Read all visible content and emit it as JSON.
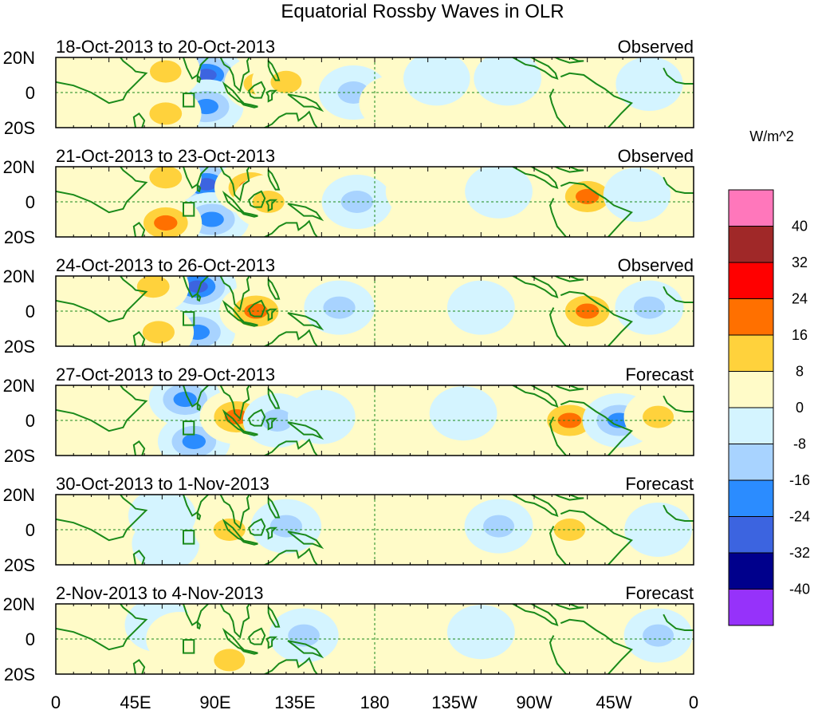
{
  "chart_data": {
    "type": "heatmap",
    "title": "Equatorial Rossby Waves in OLR",
    "units_label": "W/m^2",
    "x_ticks": [
      "0",
      "45E",
      "90E",
      "135E",
      "180",
      "135W",
      "90W",
      "45W",
      "0"
    ],
    "y_ticks": [
      "20N",
      "0",
      "20S"
    ],
    "colorbar": {
      "levels": [
        "40",
        "32",
        "24",
        "16",
        "8",
        "0",
        "-8",
        "-16",
        "-24",
        "-32",
        "-40"
      ],
      "colors": [
        "#ff77bb",
        "#a02828",
        "#ff0000",
        "#ff7000",
        "#ffd23c",
        "#fffbc8",
        "#d4f4ff",
        "#a8d3ff",
        "#2b8cff",
        "#3c64e0",
        "#00008c",
        "#9632fa"
      ]
    },
    "panels": [
      {
        "date_range": "18-Oct-2013 to 20-Oct-2013",
        "status": "Observed",
        "anomalies": [
          {
            "lon": 85,
            "lat": 10,
            "value": -28
          },
          {
            "lon": 85,
            "lat": -8,
            "value": -22
          },
          {
            "lon": 62,
            "lat": 12,
            "value": 12
          },
          {
            "lon": 62,
            "lat": -12,
            "value": 16
          },
          {
            "lon": 115,
            "lat": 5,
            "value": 14
          },
          {
            "lon": 130,
            "lat": 6,
            "value": 10
          },
          {
            "lon": 168,
            "lat": 0,
            "value": -12
          },
          {
            "lon": 190,
            "lat": -6,
            "value": 6
          },
          {
            "lon": 215,
            "lat": 8,
            "value": -6
          },
          {
            "lon": 255,
            "lat": 8,
            "value": -8
          },
          {
            "lon": 300,
            "lat": 0,
            "value": 8
          },
          {
            "lon": 335,
            "lat": 5,
            "value": -7
          }
        ]
      },
      {
        "date_range": "21-Oct-2013 to 23-Oct-2013",
        "status": "Observed",
        "anomalies": [
          {
            "lon": 85,
            "lat": 10,
            "value": -28
          },
          {
            "lon": 88,
            "lat": -10,
            "value": -24
          },
          {
            "lon": 62,
            "lat": 14,
            "value": 16
          },
          {
            "lon": 62,
            "lat": -12,
            "value": 18
          },
          {
            "lon": 110,
            "lat": 8,
            "value": 18
          },
          {
            "lon": 120,
            "lat": 0,
            "value": 14
          },
          {
            "lon": 170,
            "lat": 0,
            "value": -14
          },
          {
            "lon": 205,
            "lat": 6,
            "value": 6
          },
          {
            "lon": 250,
            "lat": 6,
            "value": -8
          },
          {
            "lon": 300,
            "lat": 3,
            "value": 18
          },
          {
            "lon": 328,
            "lat": 4,
            "value": -7
          }
        ]
      },
      {
        "date_range": "24-Oct-2013 to 26-Oct-2013",
        "status": "Observed",
        "anomalies": [
          {
            "lon": 80,
            "lat": 14,
            "value": -30
          },
          {
            "lon": 80,
            "lat": -12,
            "value": -24
          },
          {
            "lon": 55,
            "lat": 14,
            "value": 16
          },
          {
            "lon": 58,
            "lat": -12,
            "value": 14
          },
          {
            "lon": 113,
            "lat": 0,
            "value": 20
          },
          {
            "lon": 160,
            "lat": 2,
            "value": -14
          },
          {
            "lon": 200,
            "lat": 4,
            "value": 6
          },
          {
            "lon": 240,
            "lat": 2,
            "value": -8
          },
          {
            "lon": 300,
            "lat": 0,
            "value": 18
          },
          {
            "lon": 335,
            "lat": 2,
            "value": -10
          }
        ]
      },
      {
        "date_range": "27-Oct-2013 to 29-Oct-2013",
        "status": "Forecast",
        "anomalies": [
          {
            "lon": 73,
            "lat": 12,
            "value": -18
          },
          {
            "lon": 78,
            "lat": -12,
            "value": -18
          },
          {
            "lon": 102,
            "lat": 2,
            "value": 20
          },
          {
            "lon": 125,
            "lat": 0,
            "value": -10
          },
          {
            "lon": 150,
            "lat": 2,
            "value": -8
          },
          {
            "lon": 230,
            "lat": 4,
            "value": -8
          },
          {
            "lon": 290,
            "lat": 0,
            "value": 20
          },
          {
            "lon": 318,
            "lat": 0,
            "value": -20
          },
          {
            "lon": 340,
            "lat": 2,
            "value": 10
          }
        ]
      },
      {
        "date_range": "30-Oct-2013 to 1-Nov-2013",
        "status": "Forecast",
        "anomalies": [
          {
            "lon": 60,
            "lat": 8,
            "value": -8
          },
          {
            "lon": 62,
            "lat": -8,
            "value": -8
          },
          {
            "lon": 98,
            "lat": 0,
            "value": 14
          },
          {
            "lon": 130,
            "lat": 2,
            "value": -14
          },
          {
            "lon": 250,
            "lat": 2,
            "value": -10
          },
          {
            "lon": 290,
            "lat": 0,
            "value": 12
          },
          {
            "lon": 322,
            "lat": 0,
            "value": 8
          },
          {
            "lon": 340,
            "lat": 0,
            "value": -8
          }
        ]
      },
      {
        "date_range": "2-Nov-2013 to 4-Nov-2013",
        "status": "Forecast",
        "anomalies": [
          {
            "lon": 58,
            "lat": 8,
            "value": -8
          },
          {
            "lon": 70,
            "lat": 0,
            "value": 8
          },
          {
            "lon": 98,
            "lat": -12,
            "value": 10
          },
          {
            "lon": 140,
            "lat": 2,
            "value": -12
          },
          {
            "lon": 200,
            "lat": 0,
            "value": 6
          },
          {
            "lon": 240,
            "lat": 4,
            "value": -8
          },
          {
            "lon": 285,
            "lat": 8,
            "value": 8
          },
          {
            "lon": 340,
            "lat": 2,
            "value": -10
          }
        ]
      }
    ]
  }
}
